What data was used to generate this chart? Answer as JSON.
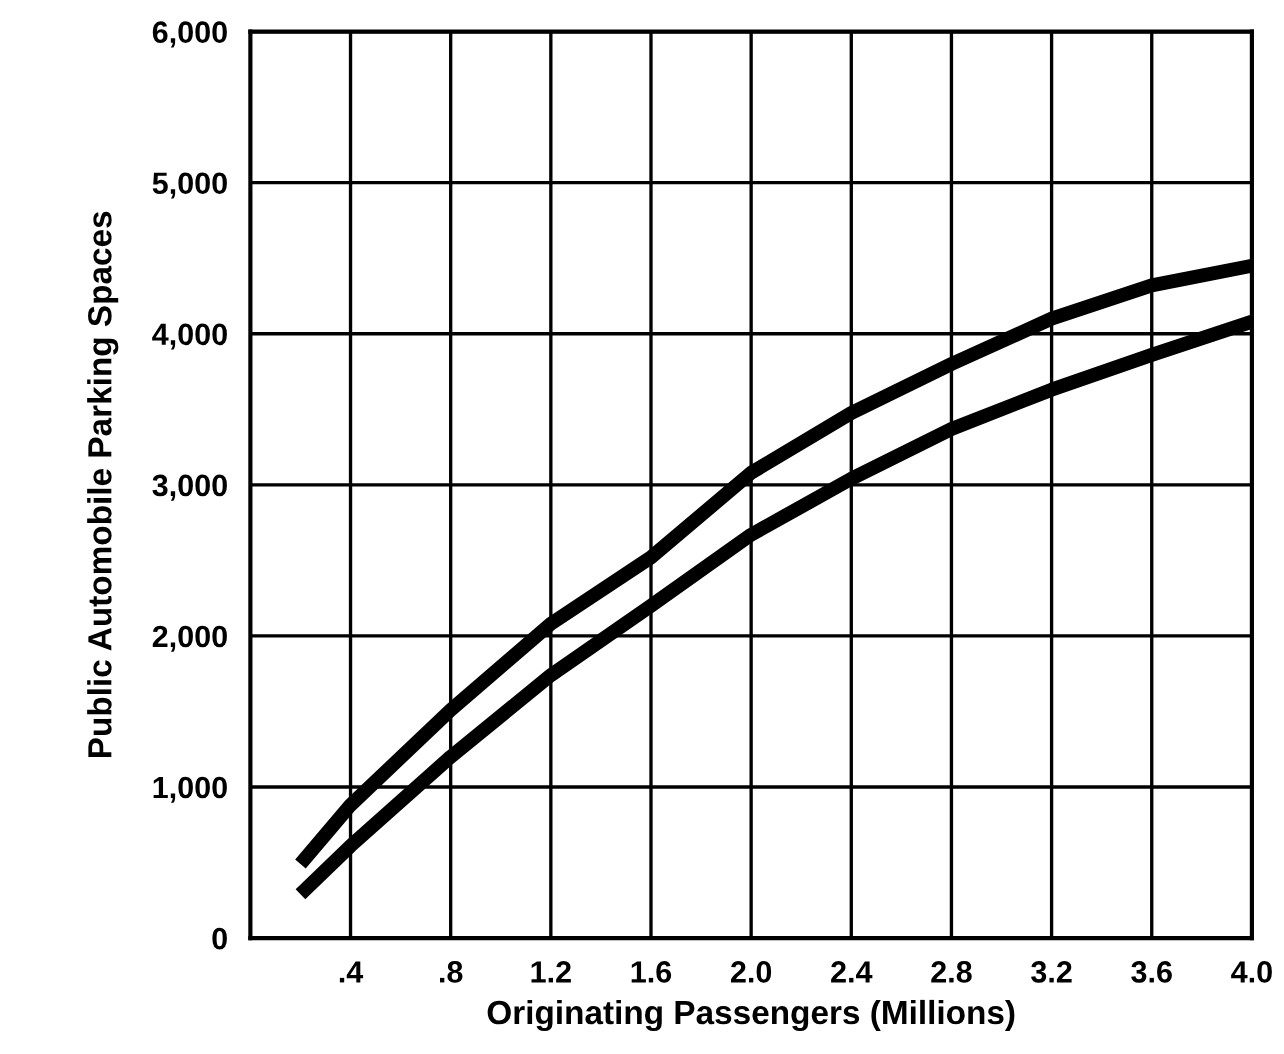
{
  "chart_data": {
    "type": "line",
    "xlabel": "Originating Passengers (Millions)",
    "ylabel": "Public Automobile Parking Spaces",
    "xlim": [
      0,
      4.0
    ],
    "ylim": [
      0,
      6000
    ],
    "xticks": [
      {
        "value": 0.4,
        "label": ".4"
      },
      {
        "value": 0.8,
        "label": ".8"
      },
      1.2,
      1.6,
      {
        "value": 2.0,
        "label": "2.0"
      },
      2.4,
      2.8,
      3.2,
      3.6,
      {
        "value": 4.0,
        "label": "4.0"
      }
    ],
    "yticks": [
      0,
      {
        "value": 1000,
        "label": "1,000"
      },
      {
        "value": 2000,
        "label": "2,000"
      },
      {
        "value": 3000,
        "label": "3,000"
      },
      {
        "value": 4000,
        "label": "4,000"
      },
      {
        "value": 5000,
        "label": "5,000"
      },
      {
        "value": 6000,
        "label": "6,000"
      }
    ],
    "grid": true,
    "marker": "none",
    "line_style": "solid",
    "series": [
      {
        "color": "#000000",
        "x": [
          0.2,
          0.4,
          0.8,
          1.2,
          1.6,
          2.0,
          2.4,
          2.8,
          3.2,
          3.6,
          4.0
        ],
        "values": [
          490,
          880,
          1510,
          2080,
          2520,
          3080,
          3475,
          3800,
          4100,
          4320,
          4450
        ]
      },
      {
        "color": "#000000",
        "x": [
          0.2,
          0.4,
          0.8,
          1.2,
          1.6,
          2.0,
          2.4,
          2.8,
          3.2,
          3.6,
          4.0
        ],
        "values": [
          290,
          610,
          1200,
          1740,
          2200,
          2670,
          3040,
          3370,
          3630,
          3860,
          4080
        ]
      }
    ]
  }
}
